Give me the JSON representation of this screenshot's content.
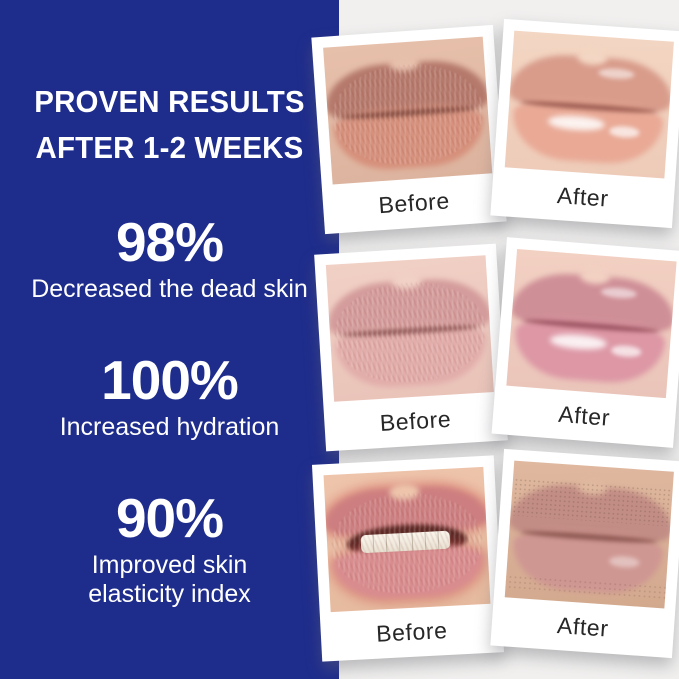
{
  "colors": {
    "panel_blue": "#1e2c8c",
    "panel_text": "#ffffff",
    "gallery_bg": "#f1f0ef",
    "card_bg": "#ffffff",
    "caption_text": "#272727"
  },
  "panel": {
    "headline_lines": [
      "PROVEN RESULTS",
      "AFTER 1-2 WEEKS"
    ],
    "stats": [
      {
        "value": "98%",
        "label_lines": [
          "Decreased the dead skin"
        ]
      },
      {
        "value": "100%",
        "label_lines": [
          "Increased hydration"
        ]
      },
      {
        "value": "90%",
        "label_lines": [
          "Improved skin",
          "elasticity index"
        ]
      }
    ]
  },
  "gallery": {
    "cards": [
      {
        "label": "Before",
        "photo": "dry chapped lips closeup"
      },
      {
        "label": "After",
        "photo": "glossy hydrated lips closeup"
      },
      {
        "label": "Before",
        "photo": "flaky peeling pink lips closeup"
      },
      {
        "label": "After",
        "photo": "smooth glossy pink lips closeup"
      },
      {
        "label": "Before",
        "photo": "severely cracked red lips with teeth showing"
      },
      {
        "label": "After",
        "photo": "healed smooth lips with stubble closeup"
      }
    ]
  }
}
